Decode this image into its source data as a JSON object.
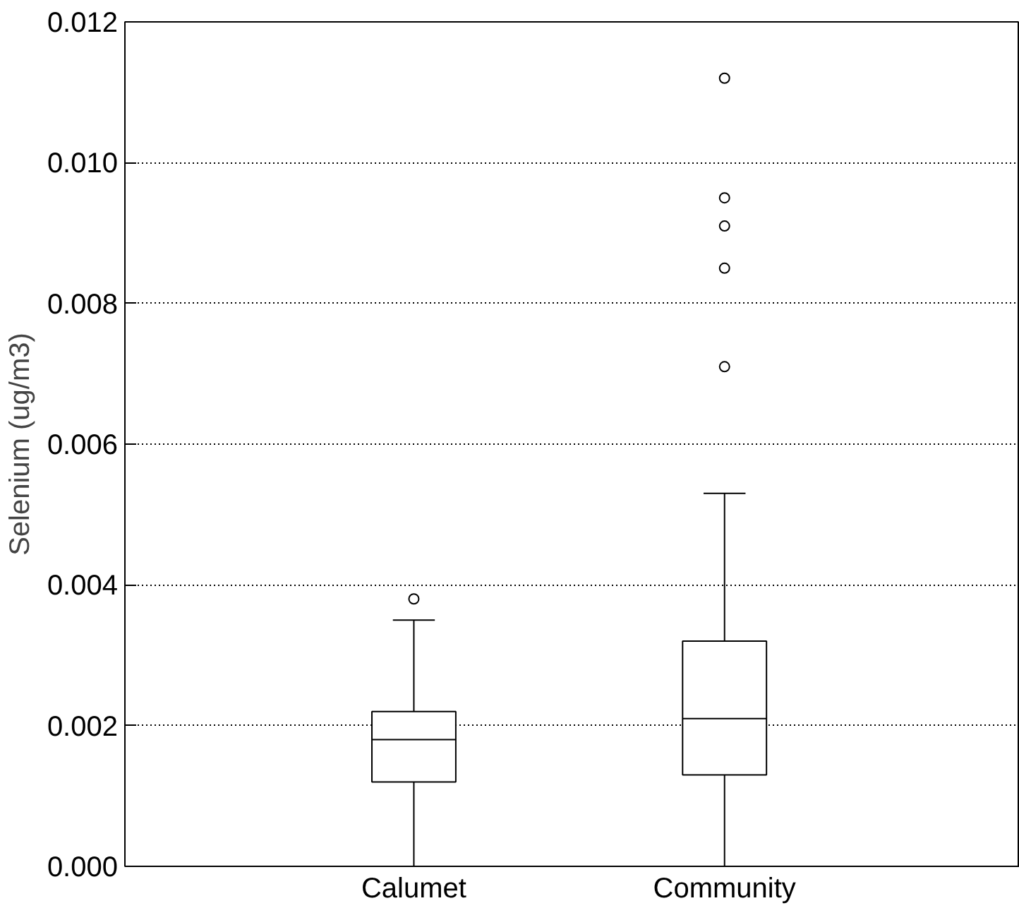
{
  "chart_data": {
    "type": "box",
    "ylabel": "Selenium (ug/m3)",
    "categories": [
      "Calumet",
      "Community"
    ],
    "boxes": [
      {
        "low": 0.0,
        "q1": 0.0012,
        "median": 0.0018,
        "q3": 0.0022,
        "high": 0.0035,
        "outliers": [
          0.0038
        ]
      },
      {
        "low": 0.0,
        "q1": 0.0013,
        "median": 0.0021,
        "q3": 0.0032,
        "high": 0.0053,
        "outliers": [
          0.0071,
          0.0085,
          0.0091,
          0.0095,
          0.0112
        ]
      }
    ],
    "ylim": [
      0.0,
      0.012
    ],
    "yticks": [
      {
        "value": 0.0,
        "label": "0.000"
      },
      {
        "value": 0.002,
        "label": "0.002"
      },
      {
        "value": 0.004,
        "label": "0.004"
      },
      {
        "value": 0.006,
        "label": "0.006"
      },
      {
        "value": 0.008,
        "label": "0.008"
      },
      {
        "value": 0.01,
        "label": "0.010"
      },
      {
        "value": 0.012,
        "label": "0.012"
      }
    ],
    "grid": "y",
    "color": "#000000"
  }
}
